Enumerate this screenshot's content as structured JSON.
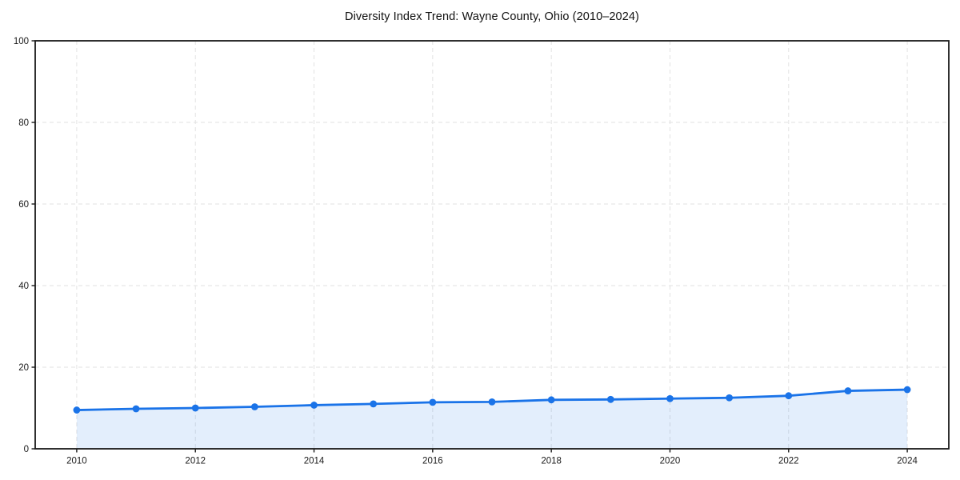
{
  "figure": {
    "title": "Diversity Index Trend: Wayne County, Ohio (2010–2024)"
  },
  "chart_data": {
    "type": "area",
    "title": "Diversity Index Trend: Wayne County, Ohio (2010–2024)",
    "x": [
      2010,
      2011,
      2012,
      2013,
      2014,
      2015,
      2016,
      2017,
      2018,
      2019,
      2020,
      2021,
      2022,
      2023,
      2024
    ],
    "series": [
      {
        "name": "Diversity Index",
        "values": [
          9.5,
          9.8,
          10.0,
          10.3,
          10.7,
          11.0,
          11.4,
          11.5,
          12.0,
          12.1,
          12.3,
          12.5,
          13.0,
          14.2,
          14.5
        ]
      }
    ],
    "xlabel": "",
    "ylabel": "",
    "xlim": [
      2009.3,
      2024.7
    ],
    "ylim": [
      0,
      100
    ],
    "x_ticks": [
      2010,
      2012,
      2014,
      2016,
      2018,
      2020,
      2022,
      2024
    ],
    "y_ticks": [
      0,
      20,
      40,
      60,
      80,
      100
    ],
    "grid": "dashed-both-axes",
    "legend_position": "none",
    "marker": "circle",
    "colors": {
      "line": "#1a73e8",
      "marker": "#1a73e8",
      "fill": "rgba(26,115,232,0.12)",
      "gridline": "#e2e2e2",
      "axis": "#1a1a1a",
      "tick_label": "#1a1a1a",
      "background": "#ffffff"
    }
  }
}
